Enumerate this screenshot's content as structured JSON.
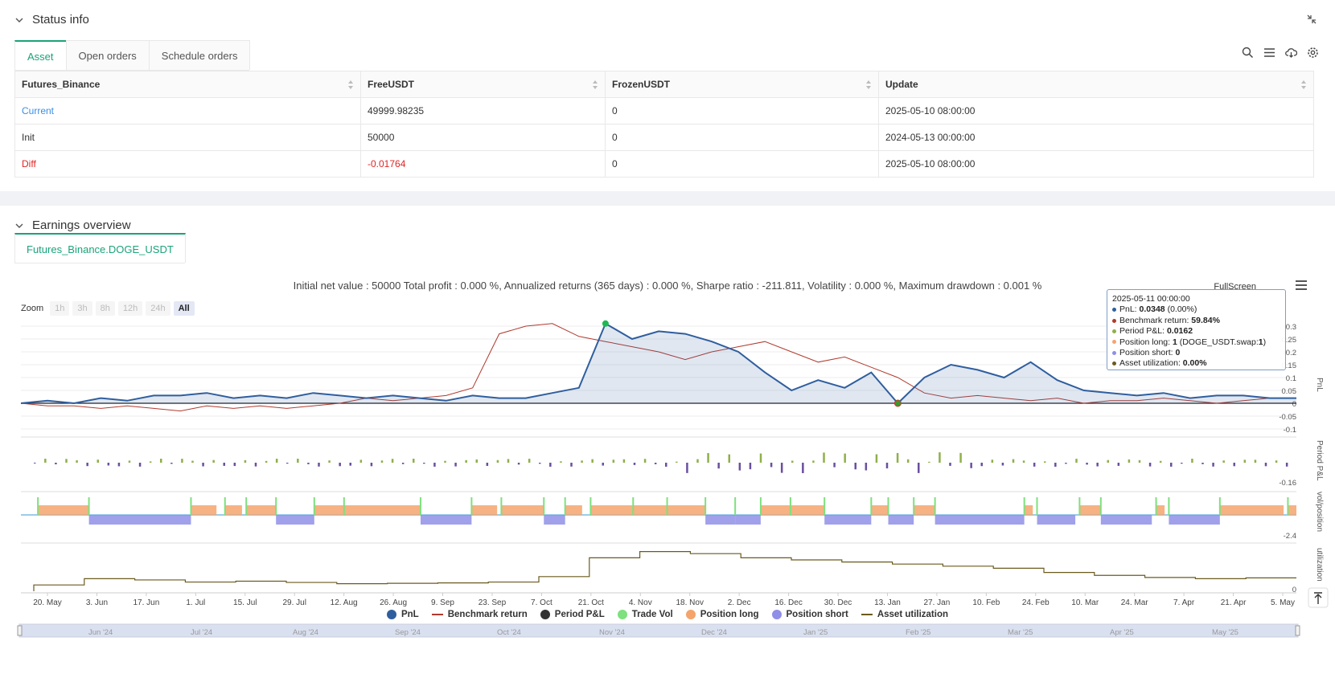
{
  "status": {
    "title": "Status info",
    "tabs": [
      "Asset",
      "Open orders",
      "Schedule orders"
    ],
    "columns": [
      "Futures_Binance",
      "FreeUSDT",
      "FrozenUSDT",
      "Update"
    ],
    "rows": [
      {
        "label": "Current",
        "free": "49999.98235",
        "frozen": "0",
        "update": "2025-05-10 08:00:00"
      },
      {
        "label": "Init",
        "free": "50000",
        "frozen": "0",
        "update": "2024-05-13 00:00:00"
      },
      {
        "label": "Diff",
        "free": "-0.01764",
        "frozen": "0",
        "update": "2025-05-10 08:00:00"
      }
    ]
  },
  "earnings": {
    "title": "Earnings overview",
    "tab": "Futures_Binance.DOGE_USDT",
    "summary": "Initial net value : 50000 Total profit : 0.000 %, Annualized returns (365 days) : 0.000 %, Sharpe ratio : -211.811, Volatility : 0.000 %, Maximum drawdown : 0.001 %",
    "fullscreen": "FullScreen",
    "zoom_label": "Zoom",
    "zoom_buttons": [
      "1h",
      "3h",
      "8h",
      "12h",
      "24h",
      "All"
    ],
    "tooltip": {
      "date": "2025-05-11 00:00:00",
      "pnl_label": "PnL: ",
      "pnl_value": "0.0348",
      "pnl_extra": " (0.00%)",
      "bench_label": "Benchmark return: ",
      "bench_value": "59.84%",
      "period_label": "Period P&L: ",
      "period_value": "0.0162",
      "long_label": "Position long: ",
      "long_value": "1",
      "long_extra": " (DOGE_USDT.swap:",
      "long_extra2": "1",
      "long_extra3": ")",
      "short_label": "Position short: ",
      "short_value": "0",
      "util_label": "Asset utilization: ",
      "util_value": "0.00%"
    },
    "legend": [
      "PnL",
      "Benchmark return",
      "Period P&L",
      "Trade Vol",
      "Position long",
      "Position short",
      "Asset utilization"
    ],
    "colors": {
      "pnl": "#2f5e9e",
      "benchmark": "#b03a2e",
      "period": "#333333",
      "tradevol": "#7ee07e",
      "long": "#f4a46c",
      "short": "#8f8fe8",
      "util": "#6b5a1e"
    }
  },
  "chart_data": {
    "type": "line",
    "x_ticks": [
      "20. May",
      "3. Jun",
      "17. Jun",
      "1. Jul",
      "15. Jul",
      "29. Jul",
      "12. Aug",
      "26. Aug",
      "9. Sep",
      "23. Sep",
      "7. Oct",
      "21. Oct",
      "4. Nov",
      "18. Nov",
      "2. Dec",
      "16. Dec",
      "30. Dec",
      "13. Jan",
      "27. Jan",
      "10. Feb",
      "24. Feb",
      "10. Mar",
      "24. Mar",
      "7. Apr",
      "21. Apr",
      "5. May"
    ],
    "navigator_ticks": [
      "Jun '24",
      "Jul '24",
      "Aug '24",
      "Sep '24",
      "Oct '24",
      "Nov '24",
      "Dec '24",
      "Jan '25",
      "Feb '25",
      "Mar '25",
      "Apr '25",
      "May '25"
    ],
    "pnl_axis": {
      "label": "PnL",
      "ticks": [
        "0.3",
        "0.25",
        "0.2",
        "0.15",
        "0.1",
        "0.05",
        "0",
        "-0.05",
        "-0.1"
      ],
      "ylim": [
        -0.1,
        0.3
      ]
    },
    "period_axis": {
      "label": "Period P&L",
      "ticks": [
        "-0.16"
      ]
    },
    "position_axis": {
      "label": "vol/position",
      "ticks": [
        "-2.4"
      ]
    },
    "util_axis": {
      "label": "utilization",
      "ticks": [
        "0"
      ]
    },
    "series": [
      {
        "name": "PnL",
        "points": [
          0.0,
          0.01,
          0.0,
          0.02,
          0.01,
          0.03,
          0.03,
          0.04,
          0.02,
          0.03,
          0.02,
          0.04,
          0.03,
          0.02,
          0.03,
          0.02,
          0.01,
          0.03,
          0.02,
          0.02,
          0.04,
          0.06,
          0.31,
          0.25,
          0.28,
          0.27,
          0.24,
          0.2,
          0.12,
          0.05,
          0.09,
          0.06,
          0.12,
          0.0,
          0.1,
          0.15,
          0.13,
          0.1,
          0.16,
          0.09,
          0.05,
          0.04,
          0.03,
          0.04,
          0.02,
          0.03,
          0.03,
          0.02,
          0.02
        ]
      },
      {
        "name": "Benchmark return",
        "points": [
          0.0,
          -0.01,
          -0.01,
          -0.02,
          -0.01,
          -0.02,
          -0.03,
          -0.01,
          -0.02,
          -0.01,
          -0.02,
          -0.01,
          0.0,
          0.02,
          0.01,
          0.02,
          0.03,
          0.06,
          0.27,
          0.3,
          0.31,
          0.26,
          0.24,
          0.22,
          0.2,
          0.17,
          0.2,
          0.22,
          0.24,
          0.2,
          0.16,
          0.18,
          0.14,
          0.1,
          0.04,
          0.02,
          0.03,
          0.02,
          0.01,
          0.02,
          0.0,
          0.01,
          0.01,
          0.02,
          0.01,
          0.0,
          0.01,
          0.02,
          0.02
        ]
      }
    ],
    "util_steps": [
      0.15,
      0.3,
      0.27,
      0.22,
      0.24,
      0.21,
      0.18,
      0.19,
      0.2,
      0.22,
      0.35,
      0.8,
      0.95,
      0.9,
      0.8,
      0.75,
      0.7,
      0.65,
      0.6,
      0.55,
      0.45,
      0.38,
      0.33,
      0.3,
      0.32
    ]
  }
}
